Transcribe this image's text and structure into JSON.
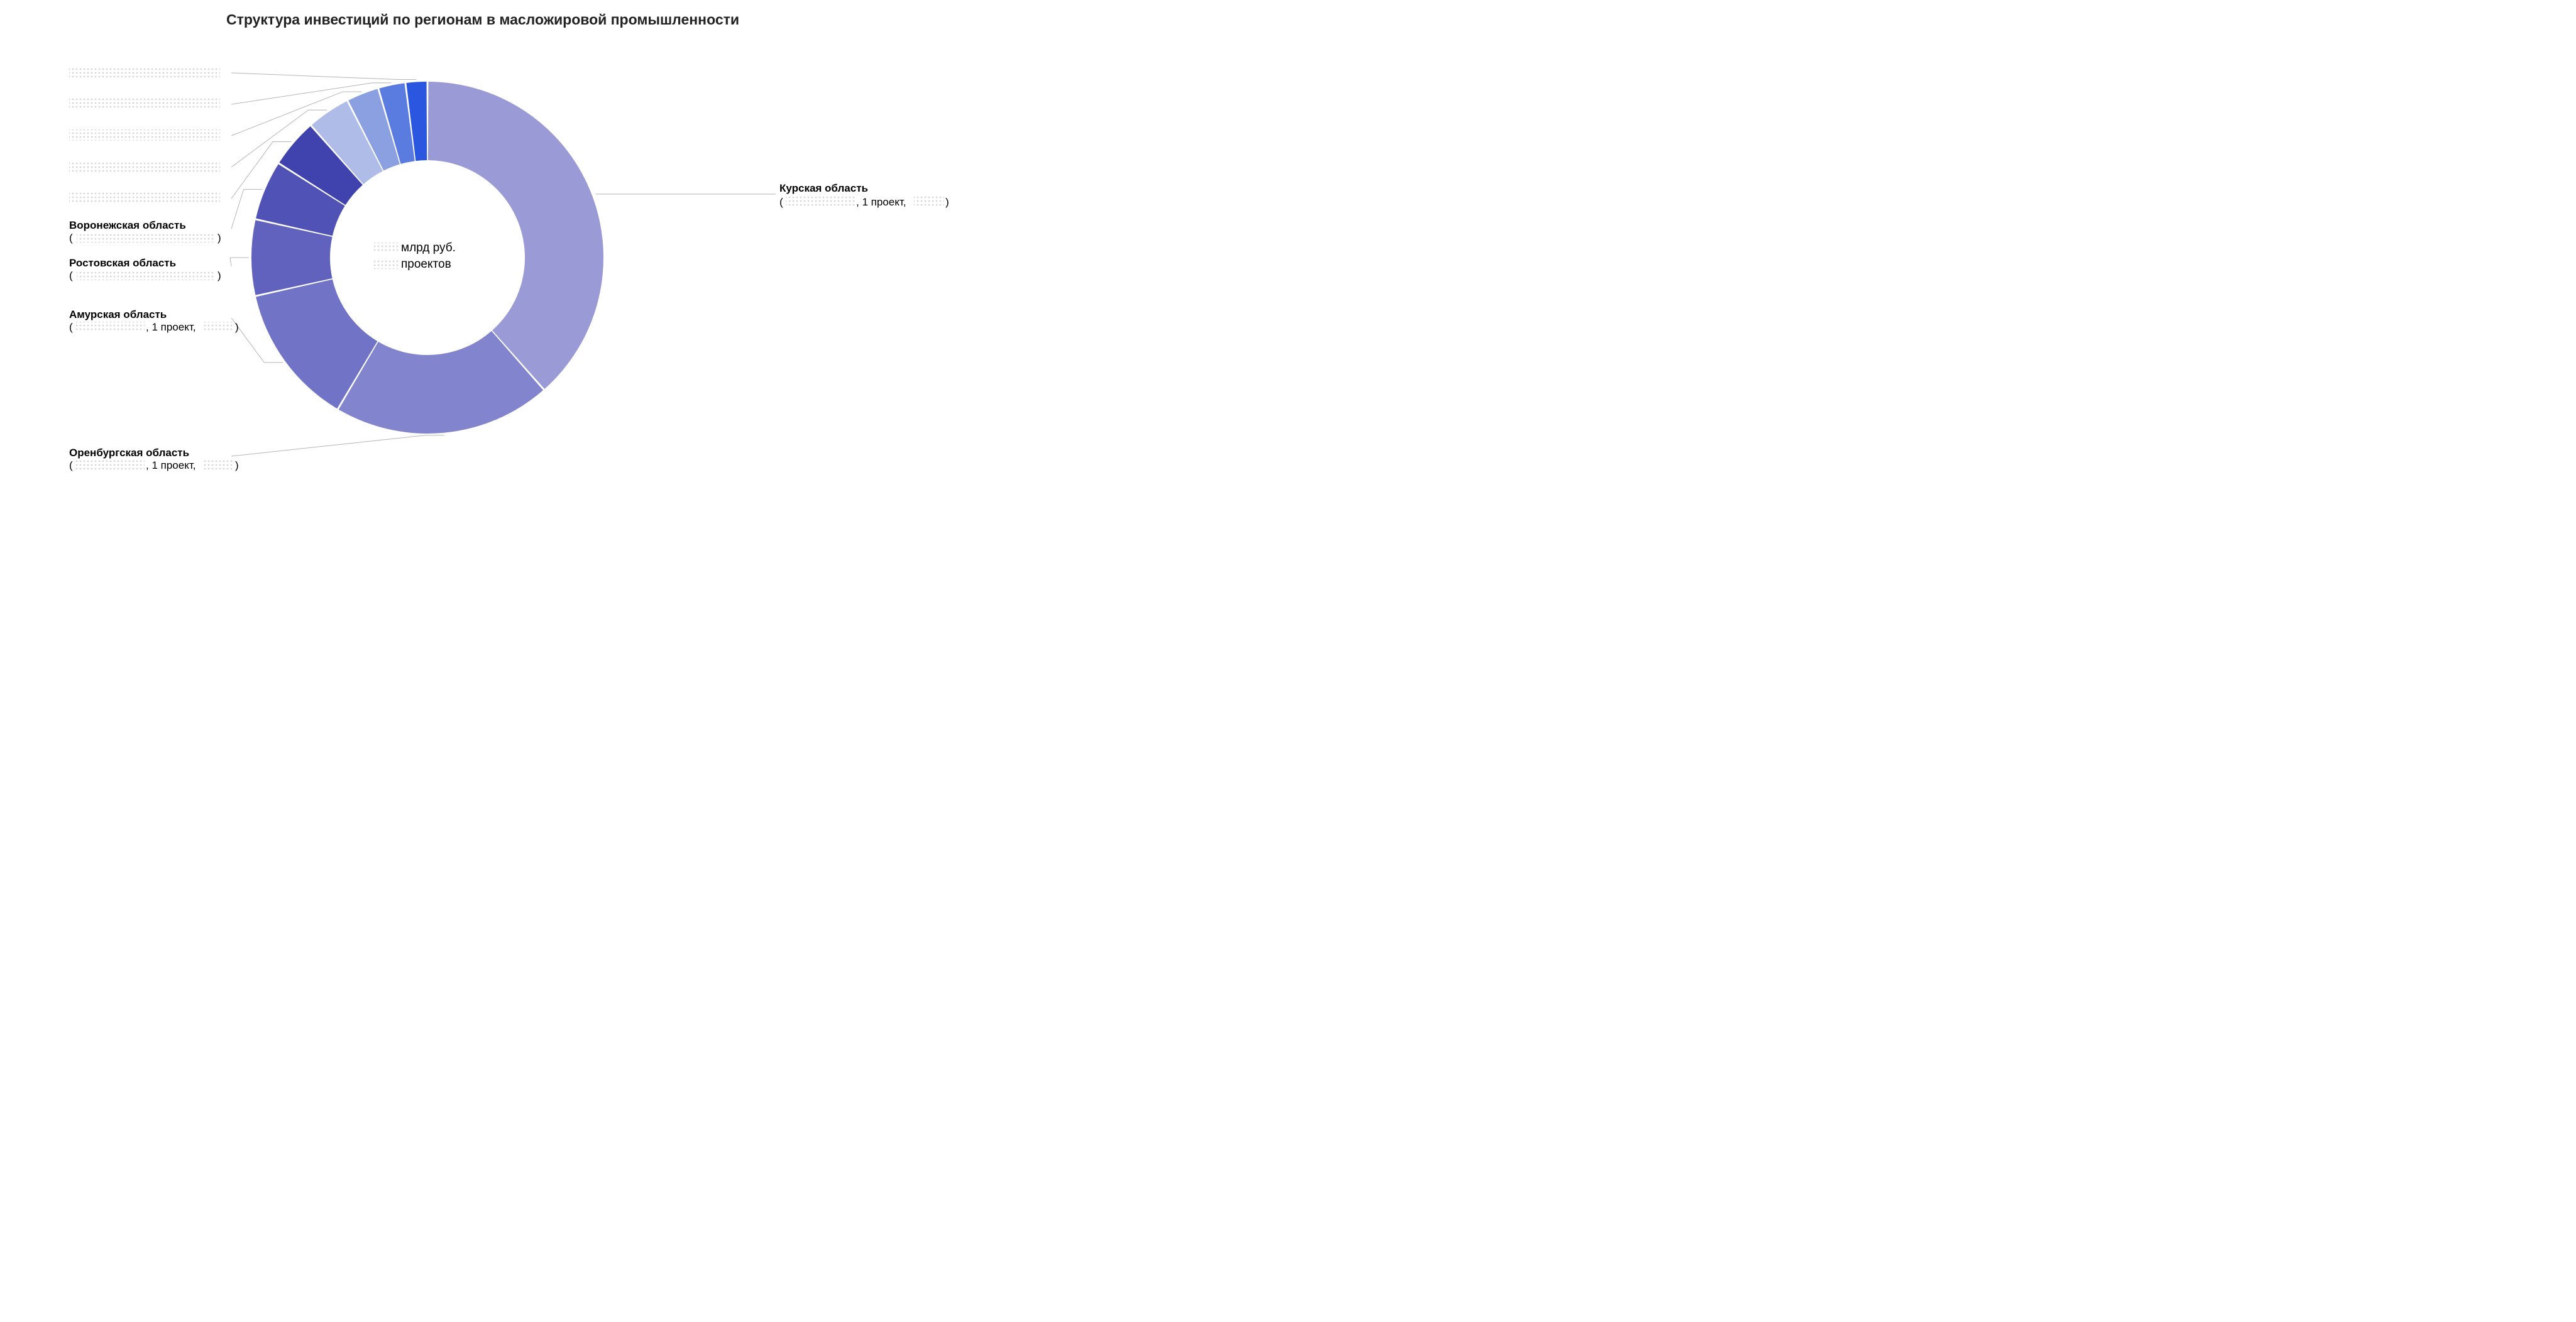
{
  "chart": {
    "type": "donut",
    "title": "Структура инвестиций по регионам в масложировой промышленности",
    "title_fontsize": 23,
    "title_color": "#222222",
    "background_color": "#ffffff",
    "center_label_line1_suffix": "млрд руб.",
    "center_label_line2_suffix": "проектов",
    "center_redacted_value": "",
    "center_redacted_count": "",
    "center_fontsize": 19,
    "center_color": "#000000",
    "label_fontsize": 17,
    "label_bold_weight": 700,
    "label_color": "#000000",
    "leader_color": "#b5b5b5",
    "leader_width": 1,
    "redaction_fill": "#d6d6d6",
    "donut_outer_r": 280,
    "donut_inner_r": 155,
    "slice_gap_deg": 0.6,
    "slices": [
      {
        "key": "kursk",
        "value": 38.5,
        "color": "#9a9bd6",
        "label_main": "Курская область",
        "label_sub_prefix": "(",
        "label_sub_mid": ", 1 проект, ",
        "label_sub_suffix": ")",
        "redact_left": true,
        "redact_right": true,
        "redact_full": false,
        "label_side": "right"
      },
      {
        "key": "orenburg",
        "value": 20.0,
        "color": "#8284ce",
        "label_main": "Оренбургская область",
        "label_sub_prefix": "(",
        "label_sub_mid": ", 1 проект, ",
        "label_sub_suffix": ")",
        "redact_left": true,
        "redact_right": true,
        "redact_full": false,
        "label_side": "left"
      },
      {
        "key": "amur",
        "value": 13.0,
        "color": "#7073c6",
        "label_main": "Амурская область",
        "label_sub_prefix": "(",
        "label_sub_mid": ", 1 проект, ",
        "label_sub_suffix": ")",
        "redact_left": true,
        "redact_right": true,
        "redact_full": false,
        "label_side": "left"
      },
      {
        "key": "rostov",
        "value": 7.0,
        "color": "#6062be",
        "label_main": "Ростовская область",
        "label_sub_prefix": "(",
        "label_sub_mid": "",
        "label_sub_suffix": ")",
        "redact_left": false,
        "redact_right": false,
        "redact_full": true,
        "label_side": "left"
      },
      {
        "key": "voronezh",
        "value": 5.5,
        "color": "#5052b6",
        "label_main": "Воронежская область",
        "label_sub_prefix": "(",
        "label_sub_mid": "",
        "label_sub_suffix": ")",
        "redact_left": false,
        "redact_right": false,
        "redact_full": true,
        "label_side": "left"
      },
      {
        "key": "redacted5",
        "value": 4.5,
        "color": "#4042ae",
        "label_main": "",
        "label_sub_prefix": "",
        "label_sub_mid": "",
        "label_sub_suffix": "",
        "redact_left": false,
        "redact_right": false,
        "redact_full": true,
        "label_side": "left",
        "label_is_redacted": true
      },
      {
        "key": "redacted4",
        "value": 4.0,
        "color": "#b0bce8",
        "label_main": "",
        "label_sub_prefix": "",
        "label_sub_mid": "",
        "label_sub_suffix": "",
        "redact_left": false,
        "redact_right": false,
        "redact_full": true,
        "label_side": "left",
        "label_is_redacted": true
      },
      {
        "key": "redacted3",
        "value": 3.0,
        "color": "#8ba0e1",
        "label_main": "",
        "label_sub_prefix": "",
        "label_sub_mid": "",
        "label_sub_suffix": "",
        "redact_left": false,
        "redact_right": false,
        "redact_full": true,
        "label_side": "left",
        "label_is_redacted": true
      },
      {
        "key": "redacted2",
        "value": 2.5,
        "color": "#5a7be0",
        "label_main": "",
        "label_sub_prefix": "",
        "label_sub_mid": "",
        "label_sub_suffix": "",
        "redact_left": false,
        "redact_right": false,
        "redact_full": true,
        "label_side": "left",
        "label_is_redacted": true
      },
      {
        "key": "redacted1",
        "value": 2.0,
        "color": "#2b56df",
        "label_main": "",
        "label_sub_prefix": "",
        "label_sub_mid": "",
        "label_sub_suffix": "",
        "redact_left": false,
        "redact_right": false,
        "redact_full": true,
        "label_side": "left",
        "label_is_redacted": true
      }
    ]
  }
}
